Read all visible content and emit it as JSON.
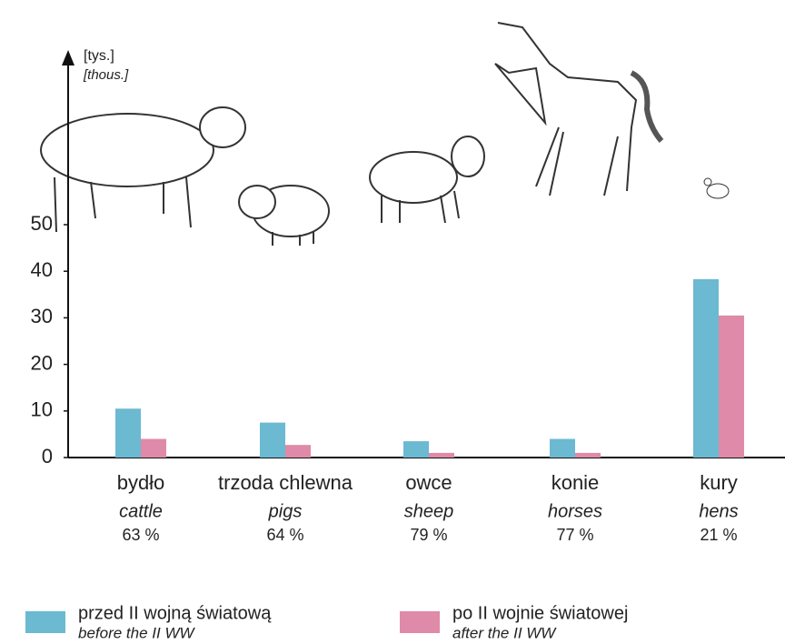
{
  "chart_data": {
    "type": "bar",
    "y_label": "[tys.]",
    "y_label_en": "[thous.]",
    "categories": [
      "bydło",
      "trzoda chlewna",
      "owce",
      "konie",
      "kury"
    ],
    "categories_en": [
      "cattle",
      "pigs",
      "sheep",
      "horses",
      "hens"
    ],
    "category_notes": [
      "63 %",
      "64 %",
      "79 %",
      "77 %",
      "21 %"
    ],
    "series": [
      {
        "name": "przed II wojną światową",
        "name_en": "before the II WW",
        "color": "#6cb9d2",
        "values": [
          10.5,
          7.5,
          3.5,
          4,
          38.3
        ]
      },
      {
        "name": "po II wojnie światowej",
        "name_en": "after the II WW",
        "color": "#df8aa8",
        "values": [
          4,
          2.7,
          1,
          1,
          30.5
        ]
      }
    ],
    "ylim": [
      0,
      50
    ],
    "yticks": [
      0,
      10,
      20,
      30,
      40,
      50
    ]
  }
}
